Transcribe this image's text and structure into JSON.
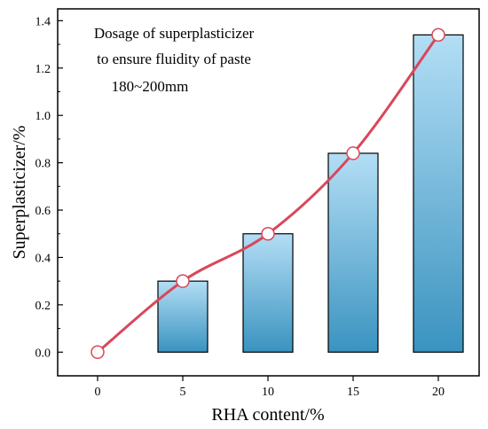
{
  "chart_data": {
    "type": "bar",
    "categories": [
      "0",
      "5",
      "10",
      "15",
      "20"
    ],
    "values": [
      0.0,
      0.3,
      0.5,
      0.84,
      1.34
    ],
    "line_overlay": true,
    "xlabel": "RHA content/%",
    "ylabel": "Superplasticizer/%",
    "ylim": [
      -0.1,
      1.45
    ],
    "yticks": [
      "0.0",
      "0.2",
      "0.4",
      "0.6",
      "0.8",
      "1.0",
      "1.2",
      "1.4"
    ],
    "annotation": [
      "Dosage of superplasticizer",
      "to ensure fluidity of paste",
      "180~200mm"
    ],
    "grid": false,
    "colors": {
      "bar_top": "#b3def5",
      "bar_bottom": "#3a93c0",
      "line": "#d9475a",
      "marker_fill": "#ffffff"
    }
  }
}
